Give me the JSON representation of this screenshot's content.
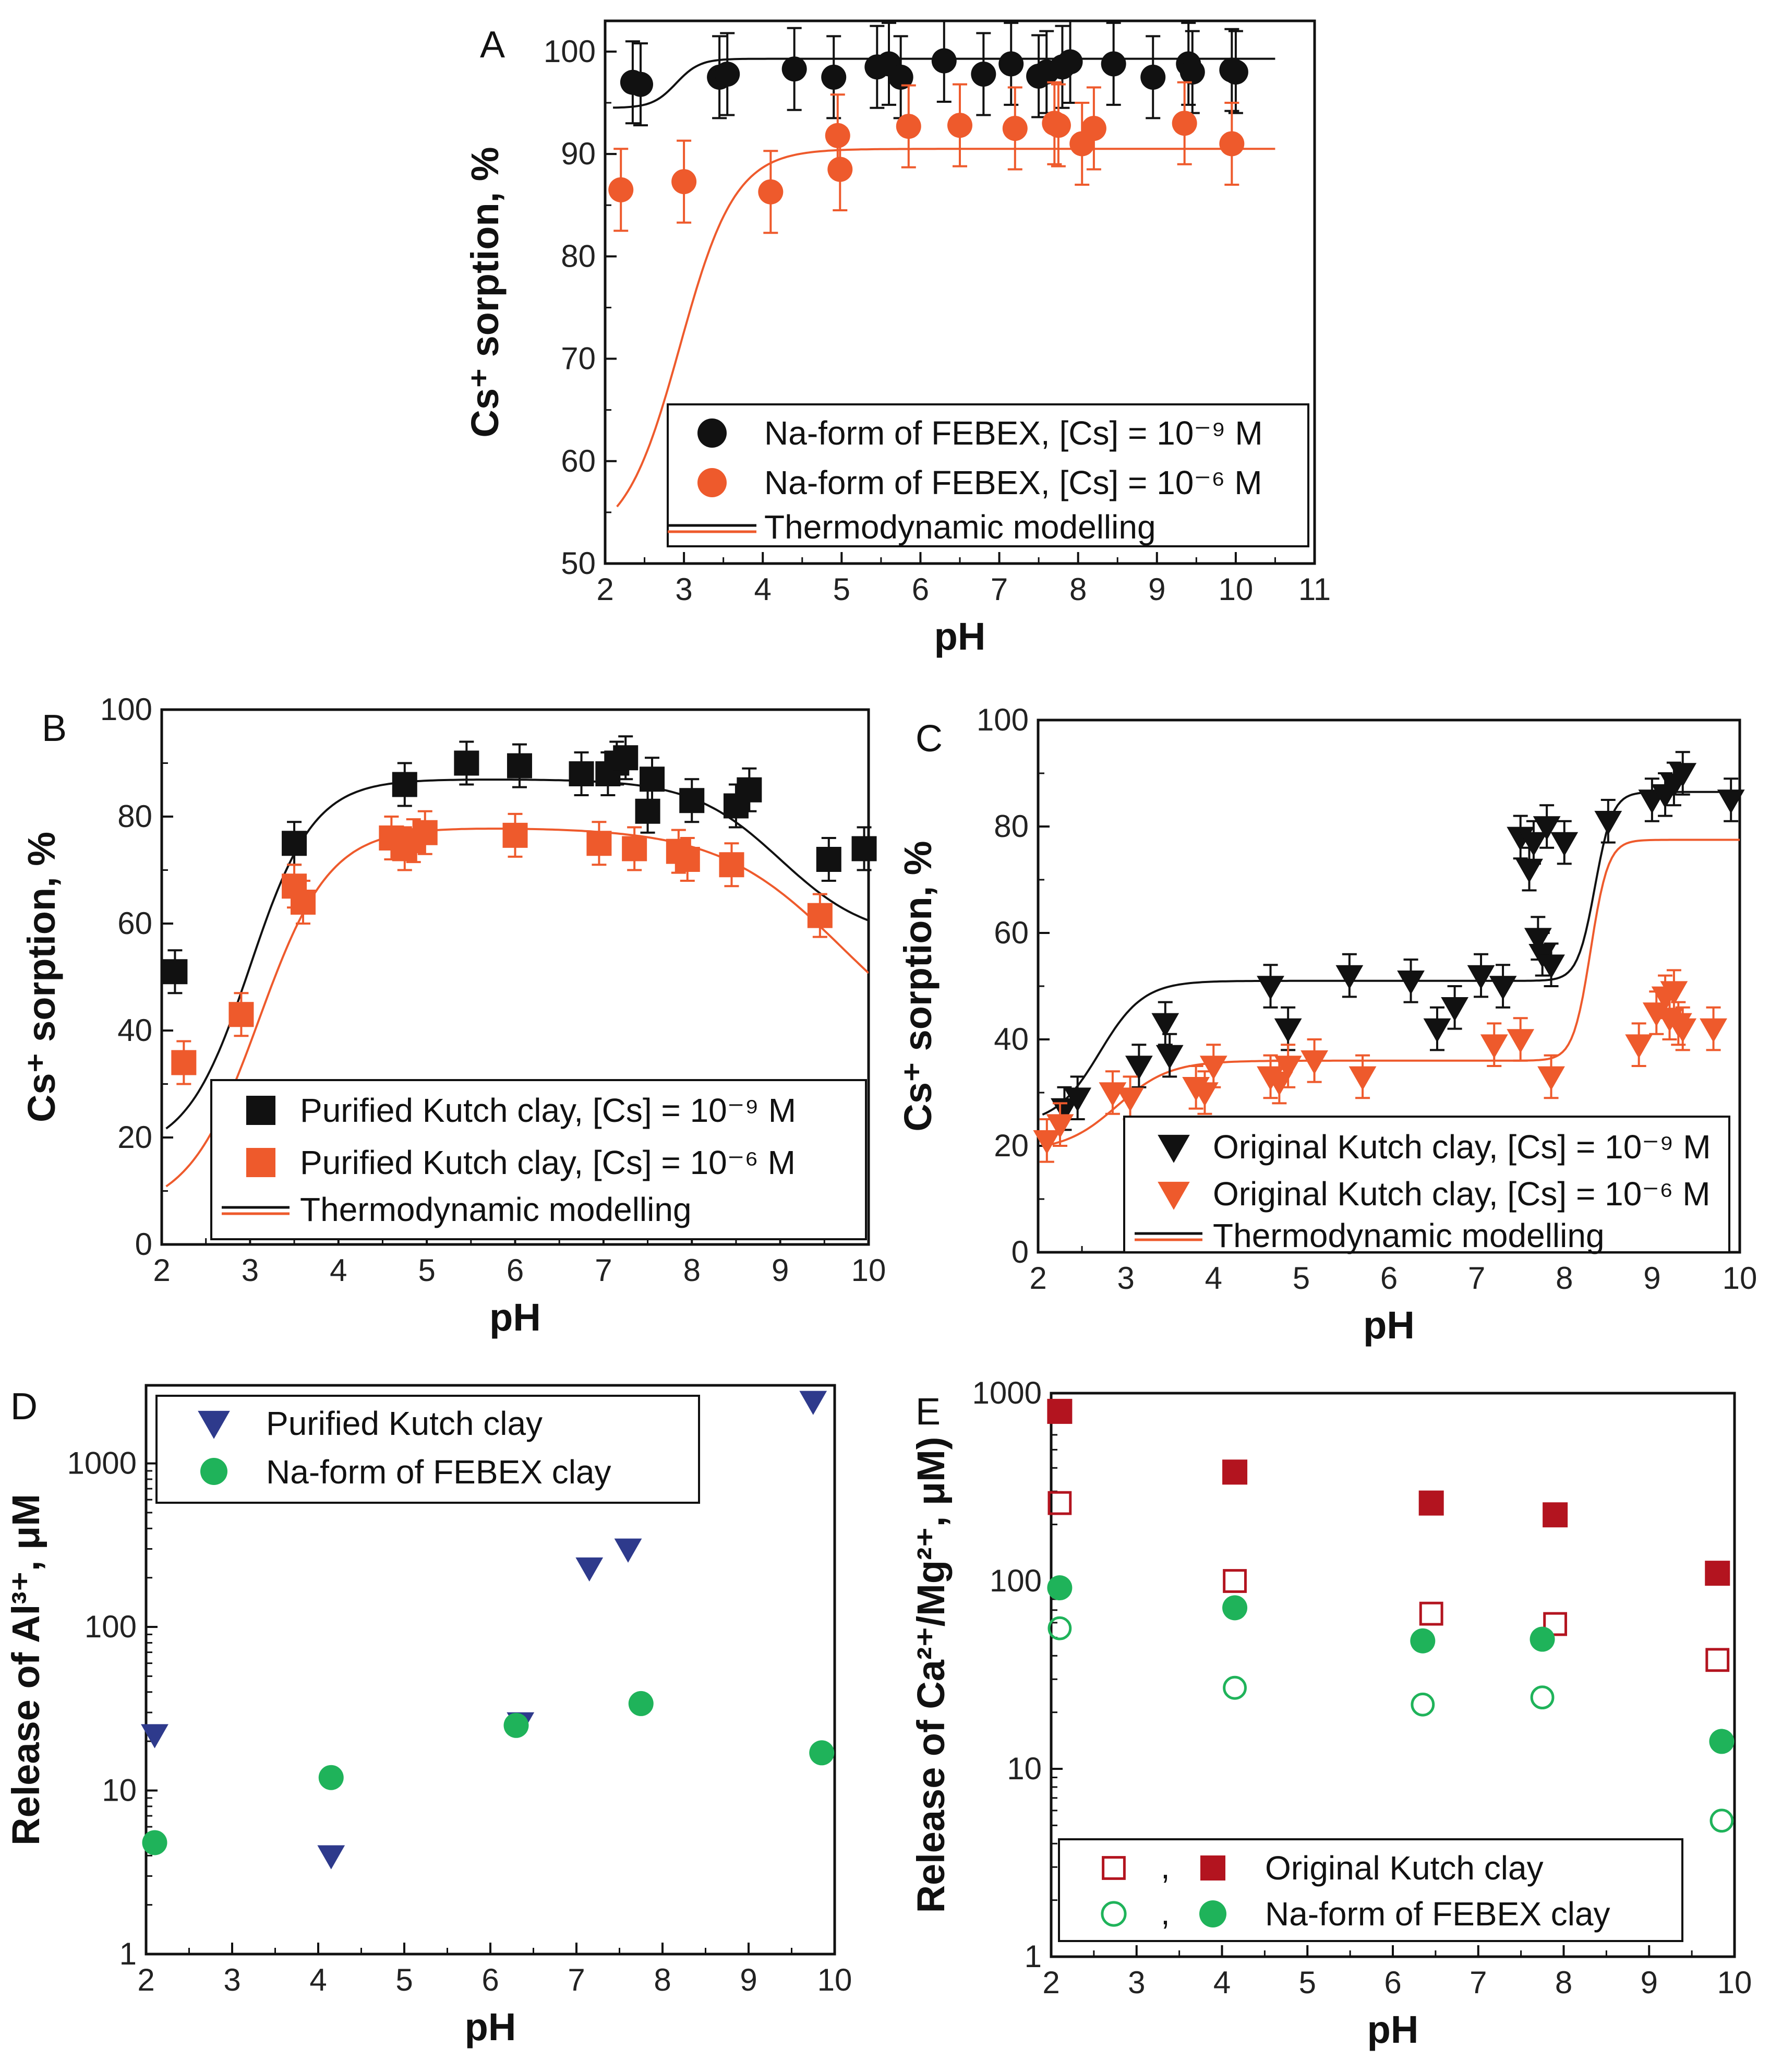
{
  "colors": {
    "black": "#111111",
    "orange": "#ee5a2c",
    "navy": "#2e3a8c",
    "green": "#1fb35a",
    "darkred": "#b3141f",
    "frame": "#111111"
  },
  "chart_data": [
    {
      "id": "A",
      "panel": "A",
      "type": "scatter",
      "xlabel": "pH",
      "ylabel": "Cs⁺ sorption, %",
      "xlim": [
        2,
        11
      ],
      "ylim": [
        50,
        103
      ],
      "xticks": [
        "2",
        "3",
        "4",
        "5",
        "6",
        "7",
        "8",
        "9",
        "10",
        "11"
      ],
      "yticks": [
        "50",
        "60",
        "70",
        "80",
        "90",
        "100"
      ],
      "legend": {
        "position": "bottom-right",
        "entries": [
          "Na-form of FEBEX, [Cs] = 10⁻⁹ M",
          "Na-form of FEBEX, [Cs] = 10⁻⁶ M",
          "Thermodynamic modelling"
        ]
      },
      "series": [
        {
          "name": "Na-form of FEBEX, [Cs] = 10⁻⁹ M",
          "marker": "circle",
          "color": "#111111",
          "err": 4,
          "points": [
            [
              2.35,
              97
            ],
            [
              2.45,
              96.8
            ],
            [
              3.45,
              97.5
            ],
            [
              3.55,
              97.8
            ],
            [
              4.4,
              98.3
            ],
            [
              4.9,
              97.5
            ],
            [
              5.45,
              98.5
            ],
            [
              5.6,
              98.8
            ],
            [
              5.75,
              97.5
            ],
            [
              6.3,
              99.1
            ],
            [
              6.8,
              97.8
            ],
            [
              7.15,
              98.8
            ],
            [
              7.5,
              97.6
            ],
            [
              7.6,
              98
            ],
            [
              7.8,
              98.5
            ],
            [
              7.9,
              99
            ],
            [
              8.45,
              98.8
            ],
            [
              8.95,
              97.5
            ],
            [
              9.4,
              98.8
            ],
            [
              9.45,
              98
            ],
            [
              9.95,
              98.2
            ],
            [
              10,
              98
            ]
          ]
        },
        {
          "name": "Na-form of FEBEX, [Cs] = 10⁻⁶ M",
          "marker": "circle",
          "color": "#ee5a2c",
          "err": 4,
          "points": [
            [
              2.2,
              86.5
            ],
            [
              3,
              87.3
            ],
            [
              4.1,
              86.3
            ],
            [
              4.95,
              91.8
            ],
            [
              4.98,
              88.5
            ],
            [
              5.85,
              92.7
            ],
            [
              6.5,
              92.8
            ],
            [
              7.2,
              92.5
            ],
            [
              7.7,
              93
            ],
            [
              7.75,
              92.8
            ],
            [
              8.05,
              91
            ],
            [
              8.2,
              92.5
            ],
            [
              9.35,
              93
            ],
            [
              9.95,
              91
            ]
          ]
        }
      ],
      "curves": [
        {
          "name": "Thermodynamic modelling",
          "color": "#111111",
          "x0": 2.1,
          "x1": 10.5,
          "plateau": 99.3,
          "base": 94.5,
          "pk": 2.9,
          "w": 0.15
        },
        {
          "name": "Thermodynamic modelling",
          "color": "#ee5a2c",
          "x0": 2.15,
          "x1": 10.5,
          "plateau": 90.5,
          "base": 52,
          "pk": 2.95,
          "w": 0.35
        }
      ]
    },
    {
      "id": "B",
      "panel": "B",
      "type": "scatter",
      "xlabel": "pH",
      "ylabel": "Cs⁺ sorption, %",
      "xlim": [
        2,
        10
      ],
      "ylim": [
        0,
        100
      ],
      "xticks": [
        "2",
        "3",
        "4",
        "5",
        "6",
        "7",
        "8",
        "9",
        "10"
      ],
      "yticks": [
        "0",
        "20",
        "40",
        "60",
        "80",
        "100"
      ],
      "legend": {
        "position": "bottom-right",
        "entries": [
          "Purified Kutch clay, [Cs] = 10⁻⁹ M",
          "Purified Kutch clay, [Cs] = 10⁻⁶ M",
          "Thermodynamic modelling"
        ]
      },
      "series": [
        {
          "name": "Purified Kutch clay, [Cs] = 10⁻⁹ M",
          "marker": "square",
          "color": "#111111",
          "err": 4,
          "points": [
            [
              2.15,
              51
            ],
            [
              3.5,
              75
            ],
            [
              4.75,
              86
            ],
            [
              5.45,
              90
            ],
            [
              6.05,
              89.5
            ],
            [
              6.75,
              88
            ],
            [
              7.05,
              88
            ],
            [
              7.15,
              90
            ],
            [
              7.25,
              91
            ],
            [
              7.5,
              81
            ],
            [
              7.55,
              87
            ],
            [
              8.0,
              83
            ],
            [
              8.5,
              82
            ],
            [
              8.65,
              85
            ],
            [
              9.55,
              72
            ],
            [
              9.95,
              74
            ]
          ]
        },
        {
          "name": "Purified Kutch clay, [Cs] = 10⁻⁶ M",
          "marker": "square",
          "color": "#ee5a2c",
          "err": 4,
          "points": [
            [
              2.25,
              34
            ],
            [
              2.9,
              43
            ],
            [
              3.5,
              67
            ],
            [
              3.6,
              64
            ],
            [
              4.6,
              76
            ],
            [
              4.75,
              74
            ],
            [
              4.85,
              75.5
            ],
            [
              4.98,
              77
            ],
            [
              6.0,
              76.5
            ],
            [
              6.95,
              75
            ],
            [
              7.35,
              74
            ],
            [
              7.85,
              73.5
            ],
            [
              7.95,
              72
            ],
            [
              8.45,
              71
            ],
            [
              9.45,
              61.5
            ]
          ]
        }
      ],
      "curves": [
        {
          "name": "Thermodynamic modelling",
          "color": "#111111",
          "x0": 2.05,
          "x1": 10,
          "peak": 87,
          "base": 17,
          "pk": 3.0,
          "w": 0.36,
          "fall": 30,
          "fk": 9.0,
          "fw": 0.5
        },
        {
          "name": "Thermodynamic modelling",
          "color": "#ee5a2c",
          "x0": 2.05,
          "x1": 10,
          "peak": 78,
          "base": 6,
          "pk": 3.1,
          "w": 0.4,
          "fall": 45,
          "fk": 9.7,
          "fw": 0.7
        }
      ]
    },
    {
      "id": "C",
      "panel": "C",
      "type": "scatter",
      "xlabel": "pH",
      "ylabel": "Cs⁺ sorption, %",
      "xlim": [
        2,
        10
      ],
      "ylim": [
        0,
        100
      ],
      "xticks": [
        "2",
        "3",
        "4",
        "5",
        "6",
        "7",
        "8",
        "9",
        "10"
      ],
      "yticks": [
        "0",
        "20",
        "40",
        "60",
        "80",
        "100"
      ],
      "legend": {
        "position": "bottom-right",
        "entries": [
          "Original Kutch clay, [Cs] = 10⁻⁹ M",
          "Original Kutch clay, [Cs] = 10⁻⁶ M",
          "Thermodynamic modelling"
        ]
      },
      "series": [
        {
          "name": "Original Kutch clay, [Cs] = 10⁻⁹ M",
          "marker": "triangle-down",
          "color": "#111111",
          "err": 4,
          "points": [
            [
              2.3,
              27
            ],
            [
              2.45,
              29
            ],
            [
              3.15,
              35
            ],
            [
              3.45,
              43
            ],
            [
              3.5,
              37
            ],
            [
              4.65,
              50
            ],
            [
              4.85,
              42
            ],
            [
              5.55,
              52
            ],
            [
              6.25,
              51
            ],
            [
              6.55,
              42
            ],
            [
              6.75,
              46
            ],
            [
              7.05,
              52
            ],
            [
              7.3,
              50
            ],
            [
              7.5,
              78
            ],
            [
              7.6,
              72
            ],
            [
              7.65,
              77
            ],
            [
              7.7,
              59
            ],
            [
              7.75,
              56
            ],
            [
              7.8,
              80
            ],
            [
              7.85,
              54
            ],
            [
              8.0,
              77
            ],
            [
              8.5,
              81
            ],
            [
              9.0,
              85
            ],
            [
              9.15,
              86
            ],
            [
              9.25,
              88
            ],
            [
              9.35,
              90
            ],
            [
              9.9,
              85
            ]
          ]
        },
        {
          "name": "Original Kutch clay, [Cs] = 10⁻⁶ M",
          "marker": "triangle-down",
          "color": "#ee5a2c",
          "err": 4,
          "points": [
            [
              2.1,
              21
            ],
            [
              2.25,
              24
            ],
            [
              2.85,
              30
            ],
            [
              3.05,
              29
            ],
            [
              3.8,
              31
            ],
            [
              3.9,
              30
            ],
            [
              4.0,
              35
            ],
            [
              4.65,
              33
            ],
            [
              4.75,
              32
            ],
            [
              4.85,
              35
            ],
            [
              5.15,
              36
            ],
            [
              5.7,
              33
            ],
            [
              7.2,
              39
            ],
            [
              7.5,
              40
            ],
            [
              7.85,
              33
            ],
            [
              8.85,
              39
            ],
            [
              9.05,
              45
            ],
            [
              9.15,
              48
            ],
            [
              9.2,
              44
            ],
            [
              9.25,
              49
            ],
            [
              9.3,
              43
            ],
            [
              9.35,
              42
            ],
            [
              9.7,
              42
            ]
          ]
        }
      ],
      "curves": [
        {
          "name": "Thermodynamic modelling",
          "color": "#111111",
          "x0": 2.05,
          "x1": 10,
          "base": 24,
          "plateau": 51,
          "pk": 2.7,
          "w": 0.25,
          "high": 86.5,
          "sk": 8.35,
          "sw": 0.1
        },
        {
          "name": "Thermodynamic modelling",
          "color": "#ee5a2c",
          "x0": 2.05,
          "x1": 10,
          "base": 19,
          "plateau": 36,
          "pk": 2.9,
          "w": 0.3,
          "high": 77.5,
          "sk": 8.3,
          "sw": 0.1
        }
      ]
    },
    {
      "id": "D",
      "panel": "D",
      "type": "scatter",
      "xlabel": "pH",
      "ylabel": "Release of  Al³⁺, μM",
      "yscale": "log",
      "xlim": [
        2,
        10
      ],
      "ylim": [
        1,
        3000
      ],
      "xticks": [
        "2",
        "3",
        "4",
        "5",
        "6",
        "7",
        "8",
        "9",
        "10"
      ],
      "yticks": [
        "1",
        "10",
        "100",
        "1000"
      ],
      "legend": {
        "position": "top-left",
        "entries": [
          "Purified Kutch clay",
          "Na-form of FEBEX clay"
        ]
      },
      "series": [
        {
          "name": "Purified Kutch clay",
          "marker": "triangle-down",
          "color": "#2e3a8c",
          "points": [
            [
              2.1,
              22
            ],
            [
              4.15,
              4
            ],
            [
              6.35,
              26
            ],
            [
              7.15,
              230
            ],
            [
              7.6,
              300
            ],
            [
              9.75,
              2400
            ]
          ]
        },
        {
          "name": "Na-form of FEBEX clay",
          "marker": "circle",
          "color": "#1fb35a",
          "points": [
            [
              2.1,
              4.8
            ],
            [
              4.15,
              12
            ],
            [
              6.3,
              25
            ],
            [
              7.75,
              34
            ],
            [
              9.85,
              17
            ]
          ]
        }
      ]
    },
    {
      "id": "E",
      "panel": "E",
      "type": "scatter",
      "xlabel": "pH",
      "ylabel": "Release of Ca²⁺/Mg²⁺, μM)",
      "yscale": "log",
      "xlim": [
        2,
        10
      ],
      "ylim": [
        1,
        1000
      ],
      "xticks": [
        "2",
        "3",
        "4",
        "5",
        "6",
        "7",
        "8",
        "9",
        "10"
      ],
      "yticks": [
        "1",
        "10",
        "100",
        "1000"
      ],
      "legend": {
        "position": "bottom-right",
        "entries": [
          "Original Kutch clay",
          "Na-form of FEBEX clay"
        ],
        "separator": ","
      },
      "series": [
        {
          "name": "Original Kutch clay (open)",
          "marker": "square-open",
          "color": "#b3141f",
          "points": [
            [
              2.1,
              260
            ],
            [
              4.15,
              100
            ],
            [
              6.45,
              67
            ],
            [
              7.9,
              59
            ],
            [
              9.8,
              38
            ]
          ]
        },
        {
          "name": "Original Kutch clay (filled)",
          "marker": "square",
          "color": "#b3141f",
          "points": [
            [
              2.1,
              800
            ],
            [
              4.15,
              380
            ],
            [
              6.45,
              260
            ],
            [
              7.9,
              225
            ],
            [
              9.8,
              110
            ]
          ]
        },
        {
          "name": "Na-form of FEBEX clay (open)",
          "marker": "circle-open",
          "color": "#1fb35a",
          "points": [
            [
              2.1,
              56
            ],
            [
              4.15,
              27
            ],
            [
              6.35,
              22
            ],
            [
              7.75,
              24
            ],
            [
              9.85,
              5.3
            ]
          ]
        },
        {
          "name": "Na-form of FEBEX clay (filled)",
          "marker": "circle",
          "color": "#1fb35a",
          "points": [
            [
              2.1,
              92
            ],
            [
              4.15,
              72
            ],
            [
              6.35,
              48
            ],
            [
              7.75,
              49
            ],
            [
              9.85,
              14
            ]
          ]
        }
      ]
    }
  ]
}
